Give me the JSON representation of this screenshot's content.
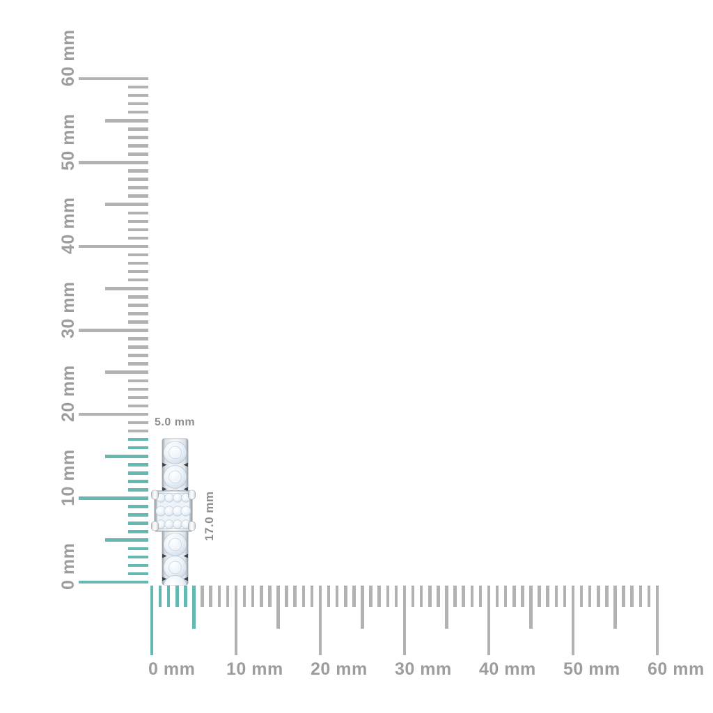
{
  "page": {
    "background": "#ffffff"
  },
  "rulers": {
    "unit": "mm",
    "colors": {
      "tick_gray": "#b2b2b2",
      "tick_highlight": "#65b9b2",
      "label_text": "#9d9d9d"
    },
    "vertical": {
      "min_mm": 0,
      "max_mm": 60,
      "major_step_mm": 10,
      "mid_step_mm": 5,
      "minor_step_mm": 1,
      "highlighted_span_mm": 17,
      "major_labels": [
        "0 mm",
        "10 mm",
        "20 mm",
        "30 mm",
        "40 mm",
        "50 mm",
        "60 mm"
      ]
    },
    "horizontal": {
      "min_mm": 0,
      "max_mm": 60,
      "major_step_mm": 10,
      "mid_step_mm": 5,
      "minor_step_mm": 1,
      "highlighted_span_mm": 5,
      "major_labels": [
        "0 mm",
        "10 mm",
        "20 mm",
        "30 mm",
        "40 mm",
        "50 mm",
        "60 mm"
      ]
    }
  },
  "measurements": {
    "width_label": "5.0 mm",
    "height_label": "17.0 mm",
    "label_color": "#8d8d8d"
  }
}
